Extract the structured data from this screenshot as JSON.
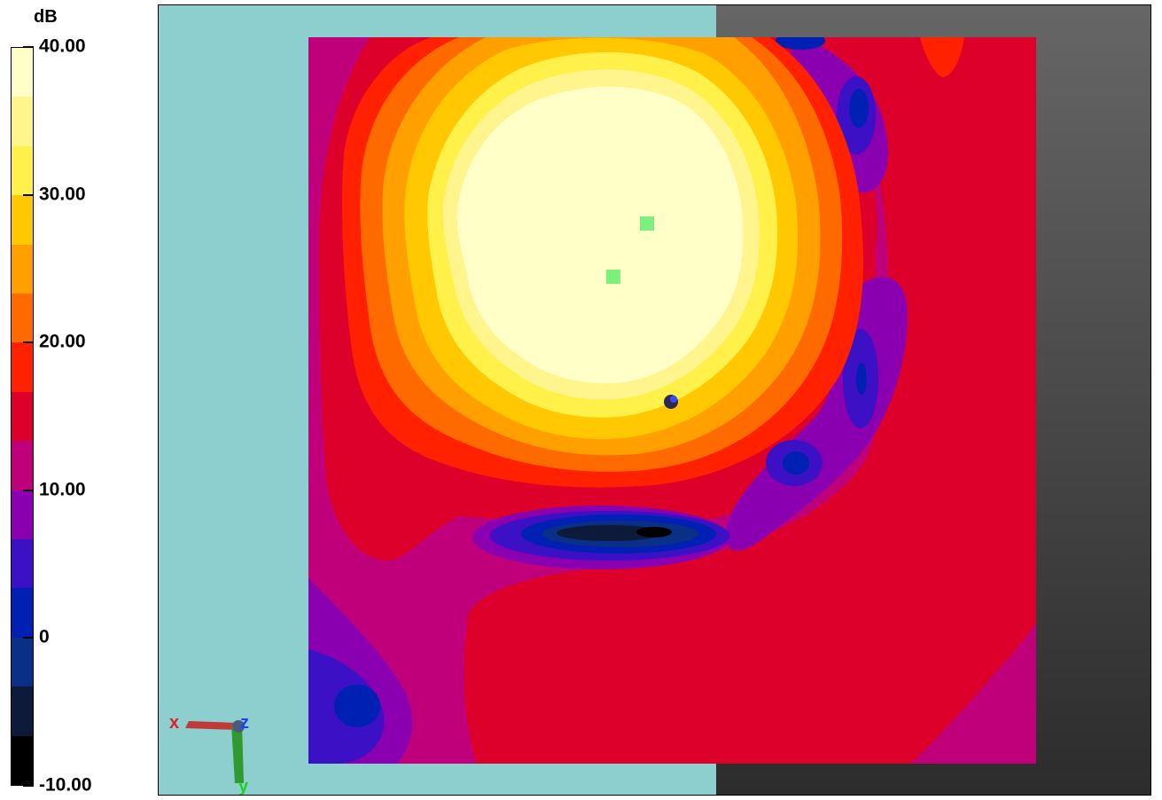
{
  "legend": {
    "unit": "dB",
    "ticks": [
      {
        "label": "40.00",
        "value": 40
      },
      {
        "label": "30.00",
        "value": 30
      },
      {
        "label": "20.00",
        "value": 20
      },
      {
        "label": "10.00",
        "value": 10
      },
      {
        "label": "0",
        "value": 0
      },
      {
        "label": "-10.00",
        "value": -10
      }
    ],
    "range": [
      -10,
      40
    ],
    "bands": [
      "#000000",
      "#0d1a3a",
      "#0a2f86",
      "#0020b4",
      "#3c10c4",
      "#8a00b0",
      "#c0007a",
      "#dd002a",
      "#ff2100",
      "#ff6a00",
      "#ffa000",
      "#ffc800",
      "#fff14a",
      "#fff58c",
      "#ffffc7"
    ]
  },
  "axes": {
    "x_label": "x",
    "y_label": "y",
    "z_label": "z"
  },
  "colors": {
    "background_left": "#8ccfce",
    "background_right_top": "#666666",
    "background_right_bottom": "#2c2c2c",
    "marker_green": "#7cf07c",
    "marker_probe": "#2a2a50"
  }
}
